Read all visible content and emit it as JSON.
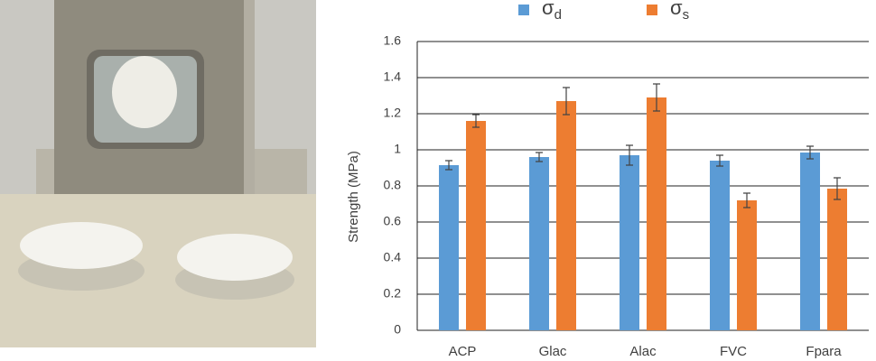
{
  "chart_data": {
    "type": "bar",
    "ylabel": "Strength (MPa)",
    "categories": [
      "ACP",
      "Glac",
      "Alac",
      "FVC",
      "Fpara"
    ],
    "series": [
      {
        "name": "σd",
        "color": "#5b9bd5",
        "values": [
          0.915,
          0.96,
          0.97,
          0.94,
          0.985
        ],
        "errors": [
          0.025,
          0.025,
          0.055,
          0.03,
          0.035
        ]
      },
      {
        "name": "σs",
        "color": "#ed7d31",
        "values": [
          1.16,
          1.27,
          1.29,
          0.72,
          0.785
        ],
        "errors": [
          0.035,
          0.075,
          0.075,
          0.04,
          0.06
        ]
      }
    ],
    "ylim": [
      0,
      1.6
    ],
    "yticks": [
      0,
      0.2,
      0.4,
      0.6,
      0.8,
      1,
      1.2,
      1.4,
      1.6
    ],
    "grid": true,
    "legend": "top"
  }
}
